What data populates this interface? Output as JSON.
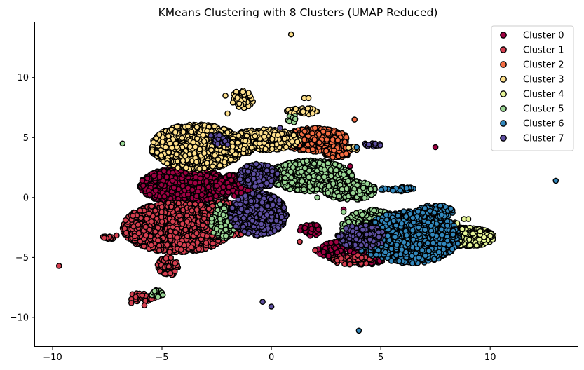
{
  "chart_data": {
    "type": "scatter",
    "title": "KMeans Clustering with 8 Clusters (UMAP Reduced)",
    "xlabel": "",
    "ylabel": "",
    "xlim": [
      -10.8,
      14.0
    ],
    "ylim": [
      -12.4,
      14.6
    ],
    "xticks": [
      -10,
      -5,
      0,
      5,
      10
    ],
    "yticks": [
      -10,
      -5,
      0,
      5,
      10
    ],
    "grid": false,
    "legend_position": "top-right",
    "marker_edge_color": "#000000",
    "series": [
      {
        "name": "Cluster 0",
        "color": "#9e0142",
        "regions": [
          {
            "cx": -4.0,
            "cy": 1.0,
            "rx": 2.0,
            "ry": 1.5,
            "n": 1300
          },
          {
            "cx": -1.7,
            "cy": 1.0,
            "rx": 0.9,
            "ry": 0.9,
            "n": 260
          },
          {
            "cx": 3.3,
            "cy": -4.4,
            "rx": 1.2,
            "ry": 0.8,
            "n": 140
          },
          {
            "cx": 4.3,
            "cy": -5.0,
            "rx": 0.9,
            "ry": 0.6,
            "n": 110
          },
          {
            "cx": 1.8,
            "cy": -2.7,
            "rx": 0.5,
            "ry": 0.5,
            "n": 40
          }
        ],
        "points": [
          [
            7.5,
            4.2
          ],
          [
            3.6,
            2.6
          ],
          [
            2.2,
            2.5
          ],
          [
            3.3,
            -1.0
          ]
        ]
      },
      {
        "name": "Cluster 1",
        "color": "#d53e4f",
        "regions": [
          {
            "cx": -4.3,
            "cy": -2.5,
            "rx": 2.5,
            "ry": 2.1,
            "n": 2200
          },
          {
            "cx": -2.1,
            "cy": -1.8,
            "rx": 1.2,
            "ry": 1.6,
            "n": 360
          },
          {
            "cx": -4.7,
            "cy": -5.7,
            "rx": 0.5,
            "ry": 0.8,
            "n": 70
          },
          {
            "cx": -5.9,
            "cy": -8.3,
            "rx": 0.6,
            "ry": 0.4,
            "n": 40
          },
          {
            "cx": -7.3,
            "cy": -3.3,
            "rx": 0.4,
            "ry": 0.2,
            "n": 14
          },
          {
            "cx": 3.7,
            "cy": -5.2,
            "rx": 1.0,
            "ry": 0.4,
            "n": 70
          }
        ],
        "points": [
          [
            -9.7,
            -5.7
          ],
          [
            -6.4,
            -8.8
          ],
          [
            -5.8,
            -9.0
          ],
          [
            1.3,
            -3.7
          ],
          [
            2.0,
            -4.4
          ]
        ]
      },
      {
        "name": "Cluster 2",
        "color": "#f46d43",
        "regions": [
          {
            "cx": 2.0,
            "cy": 4.8,
            "rx": 1.5,
            "ry": 1.0,
            "n": 600
          },
          {
            "cx": 3.0,
            "cy": 3.8,
            "rx": 0.6,
            "ry": 0.5,
            "n": 100
          }
        ],
        "points": [
          [
            3.8,
            6.5
          ],
          [
            2.2,
            1.8
          ]
        ]
      },
      {
        "name": "Cluster 3",
        "color": "#fee08b",
        "regions": [
          {
            "cx": -3.4,
            "cy": 4.2,
            "rx": 2.1,
            "ry": 1.9,
            "n": 1800
          },
          {
            "cx": -0.3,
            "cy": 4.8,
            "rx": 1.6,
            "ry": 0.9,
            "n": 550
          },
          {
            "cx": -1.6,
            "cy": 4.2,
            "rx": 0.8,
            "ry": 0.7,
            "n": 200
          },
          {
            "cx": -1.3,
            "cy": 8.2,
            "rx": 0.5,
            "ry": 0.8,
            "n": 70
          },
          {
            "cx": 1.4,
            "cy": 7.2,
            "rx": 0.7,
            "ry": 0.3,
            "n": 45
          },
          {
            "cx": 3.8,
            "cy": 4.1,
            "rx": 0.3,
            "ry": 0.2,
            "n": 12
          }
        ],
        "points": [
          [
            0.9,
            13.6
          ],
          [
            -2.1,
            8.5
          ],
          [
            -2.0,
            7.0
          ],
          [
            1.5,
            8.3
          ],
          [
            1.7,
            8.3
          ]
        ]
      },
      {
        "name": "Cluster 4",
        "color": "#e6f598",
        "regions": [
          {
            "cx": 8.8,
            "cy": -3.3,
            "rx": 1.4,
            "ry": 0.8,
            "n": 700
          },
          {
            "cx": 7.9,
            "cy": -2.4,
            "rx": 0.7,
            "ry": 0.5,
            "n": 120
          }
        ],
        "points": [
          [
            8.8,
            -1.8
          ],
          [
            9.0,
            -1.8
          ]
        ]
      },
      {
        "name": "Cluster 5",
        "color": "#99d594",
        "regions": [
          {
            "cx": 1.8,
            "cy": 1.8,
            "rx": 1.9,
            "ry": 1.3,
            "n": 900
          },
          {
            "cx": 3.6,
            "cy": 0.6,
            "rx": 1.2,
            "ry": 0.8,
            "n": 250
          },
          {
            "cx": -2.2,
            "cy": -2.0,
            "rx": 0.6,
            "ry": 1.5,
            "n": 160
          },
          {
            "cx": 4.6,
            "cy": -2.6,
            "rx": 1.4,
            "ry": 1.6,
            "n": 360
          },
          {
            "cx": -5.2,
            "cy": -8.0,
            "rx": 0.3,
            "ry": 0.3,
            "n": 14
          },
          {
            "cx": 1.0,
            "cy": 6.6,
            "rx": 0.3,
            "ry": 0.4,
            "n": 12
          }
        ],
        "points": [
          [
            -6.8,
            4.5
          ],
          [
            3.3,
            -1.2
          ],
          [
            2.1,
            0.0
          ],
          [
            4.2,
            0.8
          ]
        ]
      },
      {
        "name": "Cluster 6",
        "color": "#3288bd",
        "regions": [
          {
            "cx": 6.4,
            "cy": -3.3,
            "rx": 2.2,
            "ry": 2.2,
            "n": 1500
          },
          {
            "cx": 4.8,
            "cy": -3.6,
            "rx": 1.1,
            "ry": 1.3,
            "n": 250
          },
          {
            "cx": 5.8,
            "cy": 0.7,
            "rx": 0.8,
            "ry": 0.2,
            "n": 40
          },
          {
            "cx": 7.5,
            "cy": -1.2,
            "rx": 0.8,
            "ry": 0.6,
            "n": 120
          }
        ],
        "points": [
          [
            13.0,
            1.4
          ],
          [
            4.0,
            -11.1
          ],
          [
            3.9,
            4.2
          ]
        ]
      },
      {
        "name": "Cluster 7",
        "color": "#5e4fa2",
        "regions": [
          {
            "cx": -0.6,
            "cy": -1.4,
            "rx": 1.3,
            "ry": 1.8,
            "n": 900
          },
          {
            "cx": -0.6,
            "cy": 1.8,
            "rx": 0.9,
            "ry": 1.0,
            "n": 260
          },
          {
            "cx": 4.1,
            "cy": -3.3,
            "rx": 1.1,
            "ry": 1.0,
            "n": 200
          },
          {
            "cx": -2.4,
            "cy": 4.9,
            "rx": 0.5,
            "ry": 0.5,
            "n": 30
          },
          {
            "cx": 4.6,
            "cy": 4.4,
            "rx": 0.4,
            "ry": 0.2,
            "n": 18
          }
        ],
        "points": [
          [
            -0.4,
            -8.7
          ],
          [
            0.0,
            -9.1
          ],
          [
            0.4,
            5.8
          ],
          [
            -2.0,
            4.4
          ]
        ]
      }
    ]
  }
}
